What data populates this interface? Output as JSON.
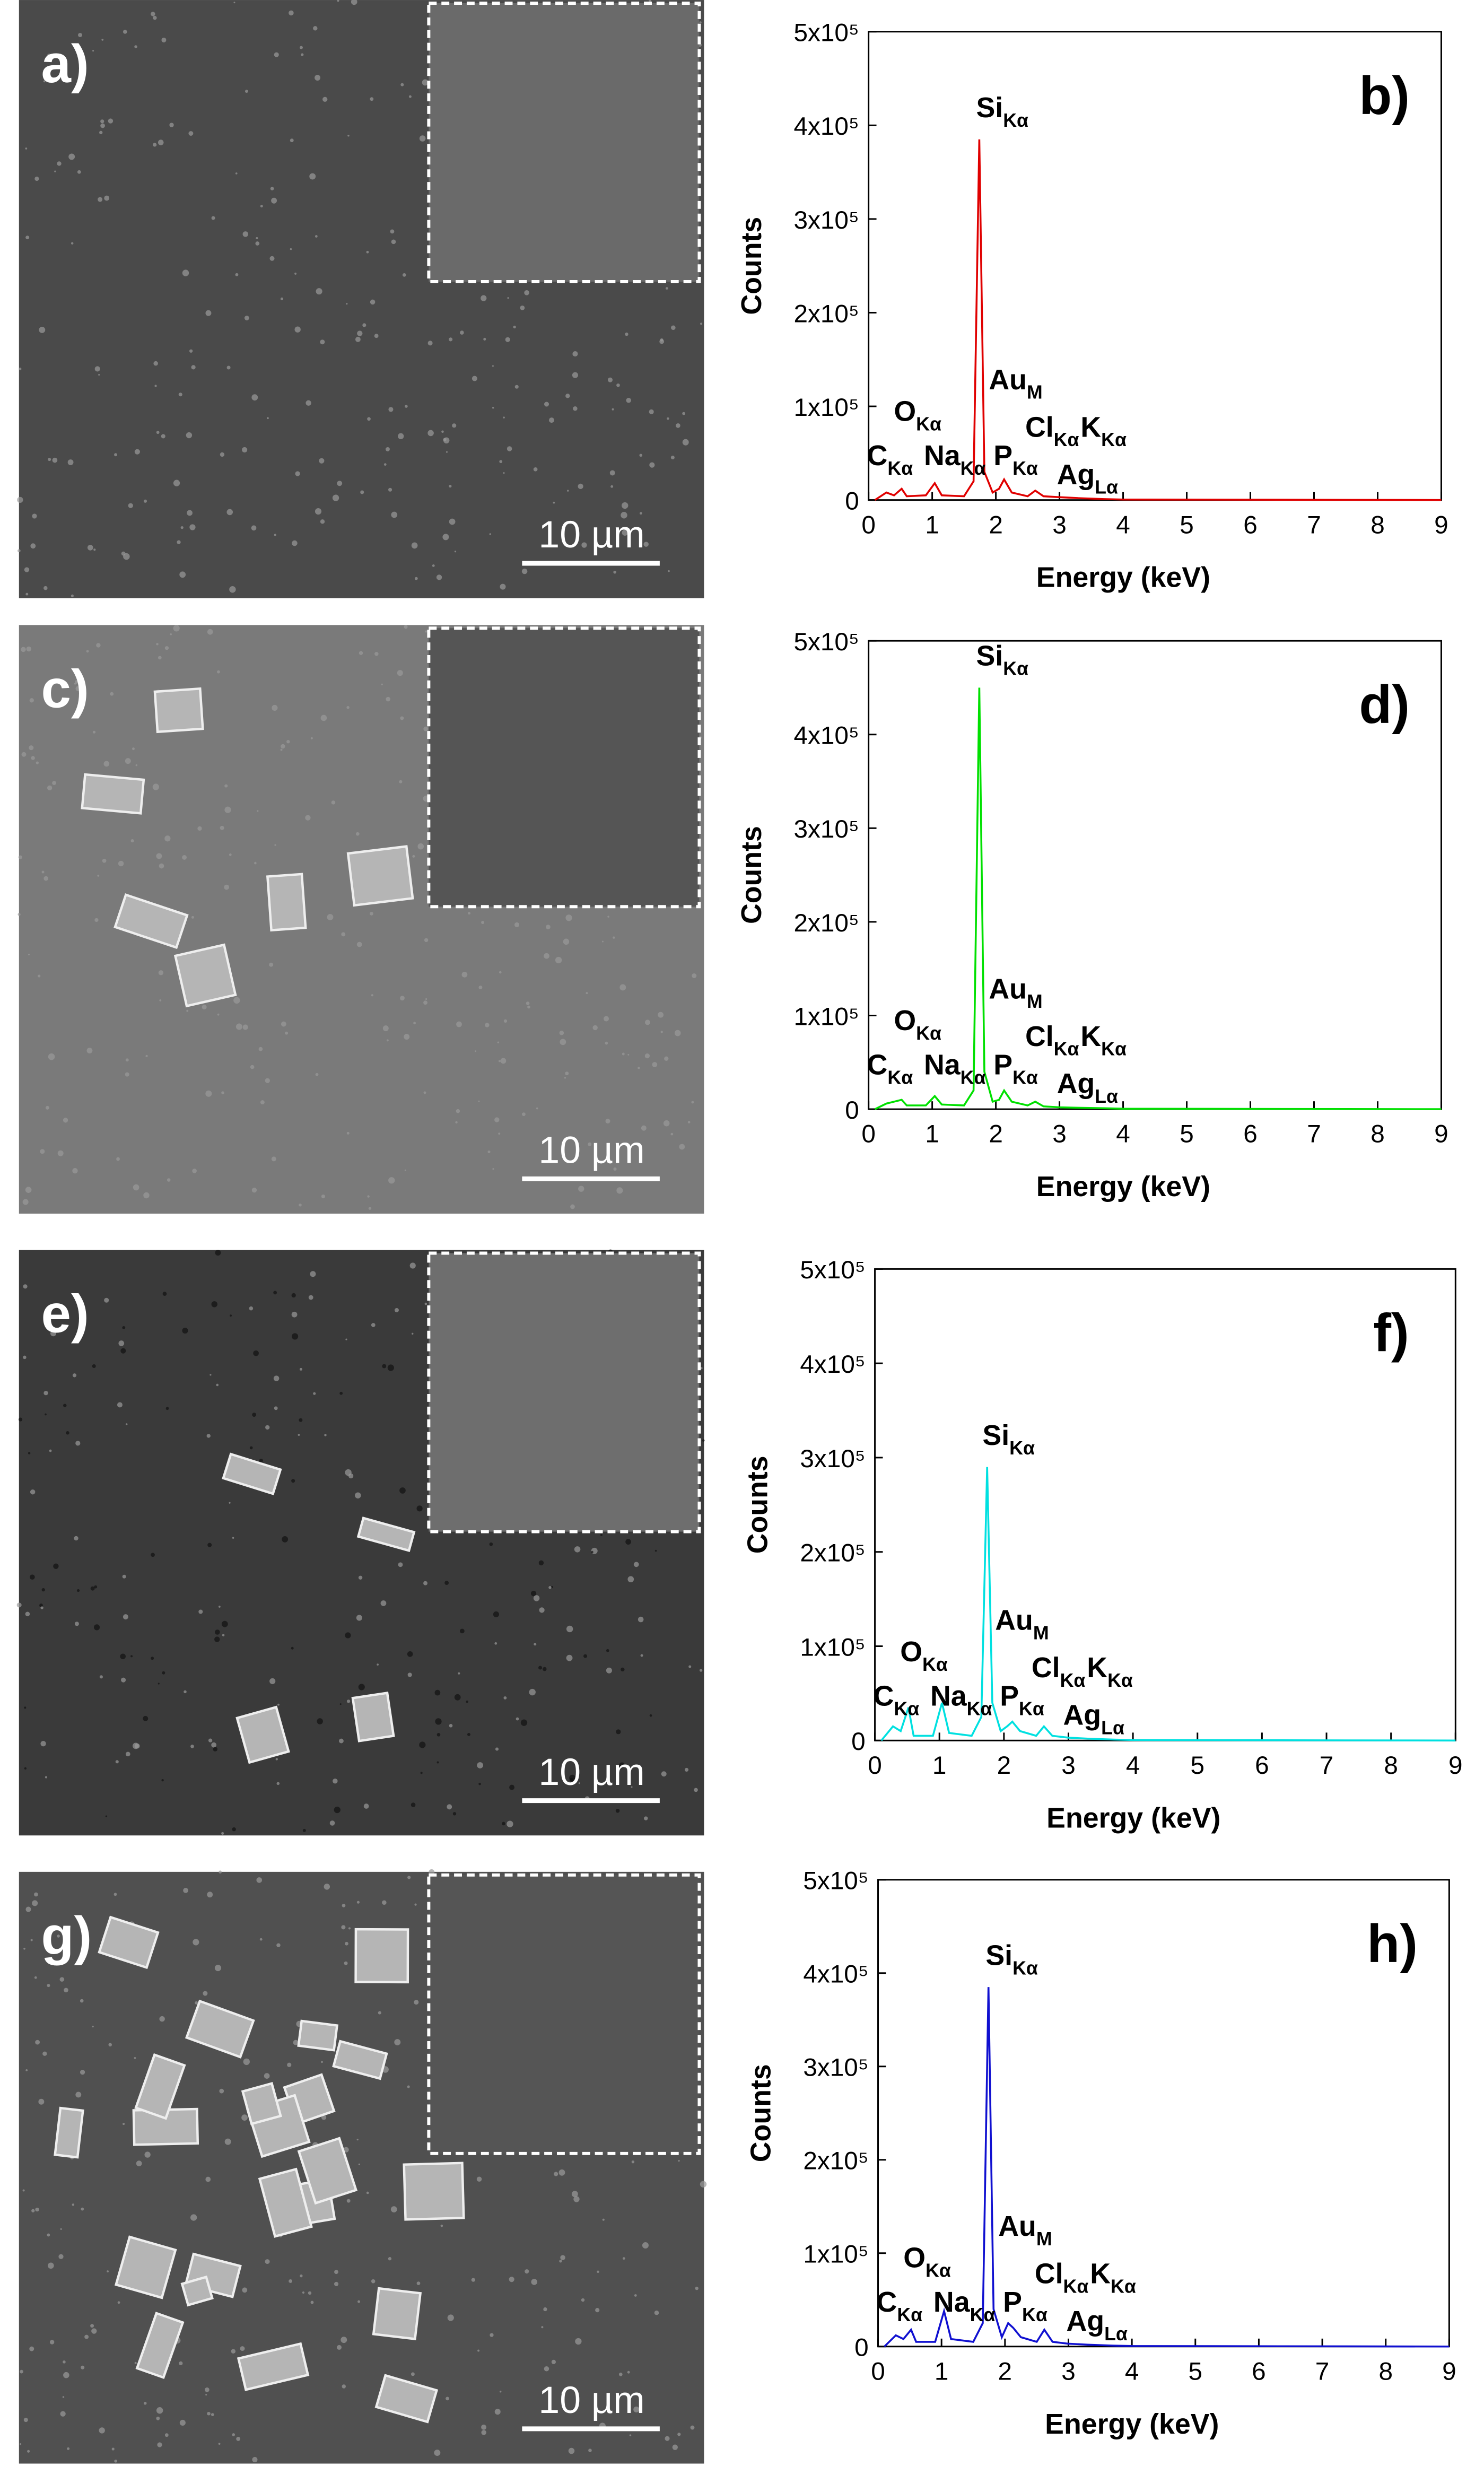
{
  "images": [
    {
      "label": "a)",
      "scale_bar": "10 µm"
    },
    {
      "label": "c)",
      "scale_bar": "10 µm"
    },
    {
      "label": "e)",
      "scale_bar": "10 µm"
    },
    {
      "label": "g)",
      "scale_bar": "10 µm"
    }
  ],
  "chart_data": [
    {
      "type": "line",
      "panel_label": "b)",
      "color": "#e00000",
      "xlabel": "Energy (keV)",
      "ylabel": "Counts",
      "x": [
        0.1,
        0.28,
        0.4,
        0.52,
        0.6,
        0.9,
        1.04,
        1.15,
        1.5,
        1.65,
        1.74,
        1.82,
        1.95,
        2.05,
        2.13,
        2.25,
        2.5,
        2.62,
        2.75,
        3.0,
        3.3,
        3.7,
        4.0,
        9
      ],
      "values": [
        0,
        8000,
        5000,
        12000,
        4000,
        5000,
        18000,
        5000,
        4000,
        20000,
        385000,
        30000,
        8000,
        12000,
        22000,
        8000,
        4000,
        10000,
        4000,
        3000,
        2000,
        1000,
        500,
        0
      ],
      "xlim": [
        0,
        9
      ],
      "xticks": [
        0,
        1,
        2,
        3,
        4,
        5,
        6,
        7,
        8,
        9
      ],
      "ylim": [
        0,
        500000
      ],
      "yticks": [
        0,
        {
          "value": 100000,
          "label": "1x10⁵"
        },
        {
          "value": 200000,
          "label": "2x10⁵"
        },
        {
          "value": 300000,
          "label": "3x10⁵"
        },
        {
          "value": 400000,
          "label": "4x10⁵"
        },
        {
          "value": 500000,
          "label": "5x10⁵"
        }
      ],
      "annotations": [
        {
          "text": "Si",
          "sub": "Kα"
        },
        {
          "text": "Au",
          "sub": "M"
        },
        {
          "text": "O",
          "sub": "Kα"
        },
        {
          "text": "C",
          "sub": "Kα"
        },
        {
          "text": "Na",
          "sub": "Kα"
        },
        {
          "text": "P",
          "sub": "Kα"
        },
        {
          "text": "Cl",
          "sub": "Kα"
        },
        {
          "text": "K",
          "sub": "Kα"
        },
        {
          "text": "Ag",
          "sub": "Lα"
        }
      ]
    },
    {
      "type": "line",
      "panel_label": "d)",
      "color": "#00e000",
      "xlabel": "Energy (keV)",
      "ylabel": "Counts",
      "x": [
        0.1,
        0.28,
        0.4,
        0.52,
        0.6,
        0.9,
        1.04,
        1.15,
        1.5,
        1.65,
        1.74,
        1.82,
        1.95,
        2.05,
        2.13,
        2.25,
        2.5,
        2.62,
        2.75,
        3.0,
        3.3,
        3.7,
        4.0,
        9
      ],
      "values": [
        0,
        6000,
        8000,
        10000,
        4000,
        4000,
        14000,
        5000,
        4000,
        20000,
        450000,
        40000,
        8000,
        10000,
        20000,
        8000,
        4000,
        8000,
        3000,
        2000,
        1500,
        1000,
        500,
        0
      ],
      "xlim": [
        0,
        9
      ],
      "xticks": [
        0,
        1,
        2,
        3,
        4,
        5,
        6,
        7,
        8,
        9
      ],
      "ylim": [
        0,
        500000
      ],
      "yticks": [
        0,
        {
          "value": 100000,
          "label": "1x10⁵"
        },
        {
          "value": 200000,
          "label": "2x10⁵"
        },
        {
          "value": 300000,
          "label": "3x10⁵"
        },
        {
          "value": 400000,
          "label": "4x10⁵"
        },
        {
          "value": 500000,
          "label": "5x10⁵"
        }
      ],
      "annotations": [
        {
          "text": "Si",
          "sub": "Kα"
        },
        {
          "text": "Au",
          "sub": "M"
        },
        {
          "text": "O",
          "sub": "Kα"
        },
        {
          "text": "C",
          "sub": "Kα"
        },
        {
          "text": "Na",
          "sub": "Kα"
        },
        {
          "text": "P",
          "sub": "Kα"
        },
        {
          "text": "Cl",
          "sub": "Kα"
        },
        {
          "text": "K",
          "sub": "Kα"
        },
        {
          "text": "Ag",
          "sub": "Lα"
        }
      ]
    },
    {
      "type": "line",
      "panel_label": "f)",
      "color": "#00e0e0",
      "xlabel": "Energy (keV)",
      "ylabel": "Counts",
      "x": [
        0.1,
        0.28,
        0.4,
        0.52,
        0.6,
        0.9,
        1.04,
        1.15,
        1.5,
        1.65,
        1.74,
        1.82,
        1.95,
        2.05,
        2.13,
        2.25,
        2.5,
        2.62,
        2.75,
        3.0,
        3.3,
        3.7,
        4.0,
        9
      ],
      "values": [
        0,
        15000,
        10000,
        35000,
        5000,
        5000,
        40000,
        8000,
        5000,
        25000,
        290000,
        40000,
        10000,
        15000,
        20000,
        10000,
        5000,
        15000,
        5000,
        3000,
        2000,
        1000,
        500,
        0
      ],
      "xlim": [
        0,
        9
      ],
      "xticks": [
        0,
        1,
        2,
        3,
        4,
        5,
        6,
        7,
        8,
        9
      ],
      "ylim": [
        0,
        500000
      ],
      "yticks": [
        0,
        {
          "value": 100000,
          "label": "1x10⁵"
        },
        {
          "value": 200000,
          "label": "2x10⁵"
        },
        {
          "value": 300000,
          "label": "3x10⁵"
        },
        {
          "value": 400000,
          "label": "4x10⁵"
        },
        {
          "value": 500000,
          "label": "5x10⁵"
        }
      ],
      "annotations": [
        {
          "text": "Si",
          "sub": "Kα"
        },
        {
          "text": "Au",
          "sub": "M"
        },
        {
          "text": "O",
          "sub": "Kα"
        },
        {
          "text": "C",
          "sub": "Kα"
        },
        {
          "text": "Na",
          "sub": "Kα"
        },
        {
          "text": "P",
          "sub": "Kα"
        },
        {
          "text": "Cl",
          "sub": "Kα"
        },
        {
          "text": "K",
          "sub": "Kα"
        },
        {
          "text": "Ag",
          "sub": "Lα"
        }
      ]
    },
    {
      "type": "line",
      "panel_label": "h)",
      "color": "#1010d0",
      "xlabel": "Energy (keV)",
      "ylabel": "Counts",
      "x": [
        0.1,
        0.28,
        0.4,
        0.52,
        0.6,
        0.9,
        1.04,
        1.15,
        1.5,
        1.65,
        1.74,
        1.82,
        1.95,
        2.05,
        2.13,
        2.25,
        2.5,
        2.62,
        2.75,
        3.0,
        3.3,
        3.7,
        4.0,
        9
      ],
      "values": [
        0,
        12000,
        8000,
        18000,
        5000,
        5000,
        38000,
        8000,
        5000,
        25000,
        385000,
        40000,
        10000,
        25000,
        20000,
        10000,
        5000,
        18000,
        5000,
        3000,
        2000,
        1000,
        500,
        0
      ],
      "xlim": [
        0,
        9
      ],
      "xticks": [
        0,
        1,
        2,
        3,
        4,
        5,
        6,
        7,
        8,
        9
      ],
      "ylim": [
        0,
        500000
      ],
      "yticks": [
        0,
        {
          "value": 100000,
          "label": "1x10⁵"
        },
        {
          "value": 200000,
          "label": "2x10⁵"
        },
        {
          "value": 300000,
          "label": "3x10⁵"
        },
        {
          "value": 400000,
          "label": "4x10⁵"
        },
        {
          "value": 500000,
          "label": "5x10⁵"
        }
      ],
      "annotations": [
        {
          "text": "Si",
          "sub": "Kα"
        },
        {
          "text": "Au",
          "sub": "M"
        },
        {
          "text": "O",
          "sub": "Kα"
        },
        {
          "text": "C",
          "sub": "Kα"
        },
        {
          "text": "Na",
          "sub": "Kα"
        },
        {
          "text": "P",
          "sub": "Kα"
        },
        {
          "text": "Cl",
          "sub": "Kα"
        },
        {
          "text": "K",
          "sub": "Kα"
        },
        {
          "text": "Ag",
          "sub": "Lα"
        }
      ]
    }
  ]
}
